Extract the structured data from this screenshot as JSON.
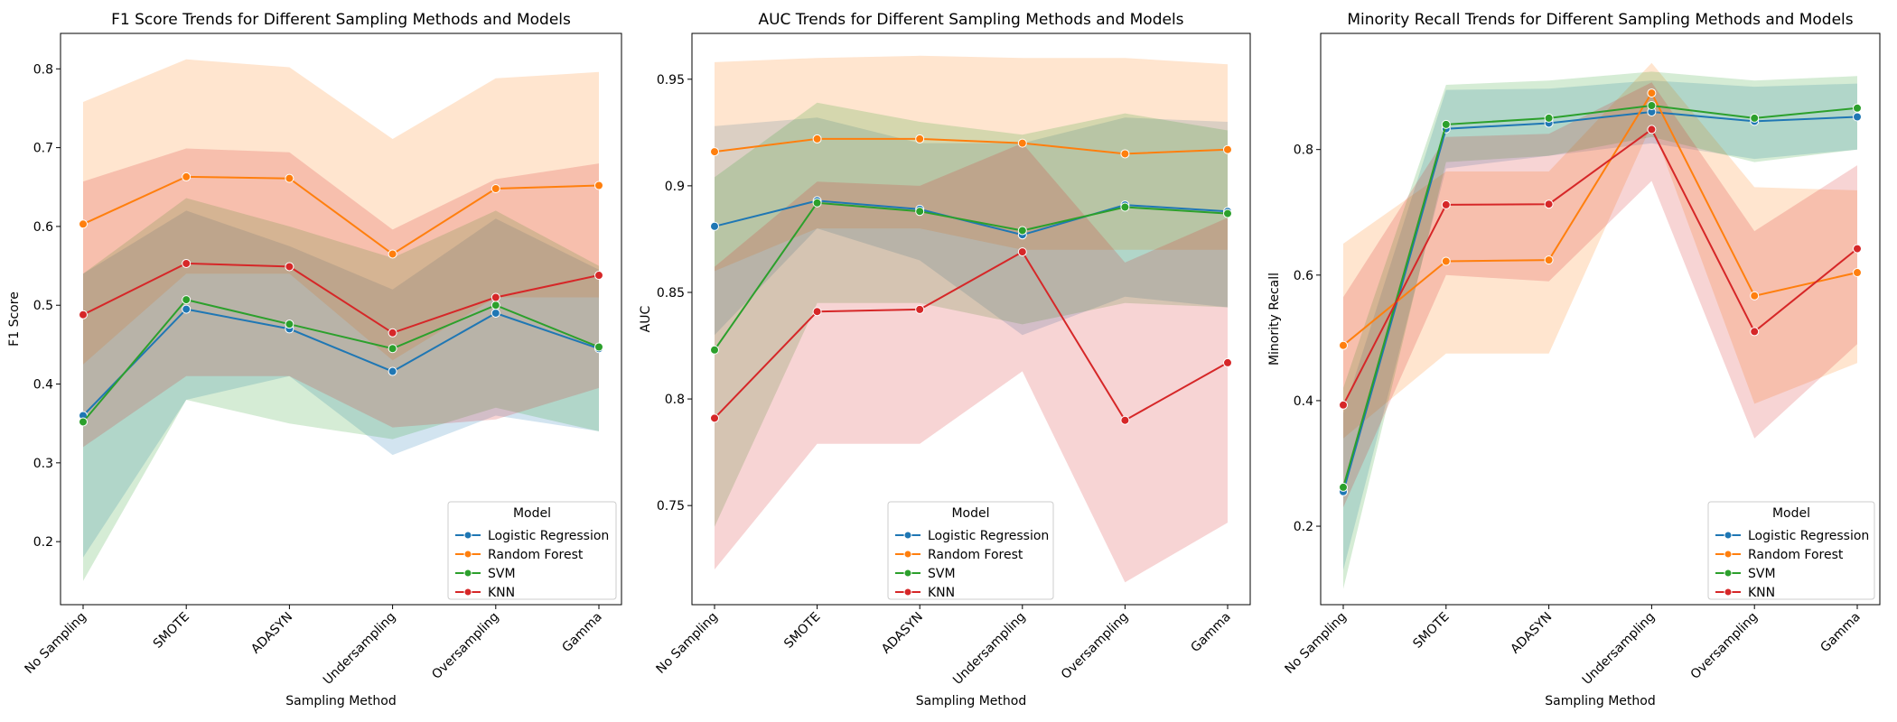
{
  "chart_data": [
    {
      "type": "line",
      "title": "F1 Score Trends for Different Sampling Methods and Models",
      "xlabel": "Sampling Method",
      "ylabel": "F1 Score",
      "ylim": [
        0.12,
        0.845
      ],
      "yticks": [
        0.2,
        0.3,
        0.4,
        0.5,
        0.6,
        0.7,
        0.8
      ],
      "categories": [
        "No Sampling",
        "SMOTE",
        "ADASYN",
        "Undersampling",
        "Oversampling",
        "Gamma"
      ],
      "legend": {
        "title": "Model",
        "position": "lower-right"
      },
      "series": [
        {
          "name": "Logistic Regression",
          "color": "#1f77b4",
          "values": [
            0.36,
            0.495,
            0.47,
            0.416,
            0.49,
            0.445
          ],
          "lower": [
            0.18,
            0.38,
            0.41,
            0.31,
            0.36,
            0.34
          ],
          "upper": [
            0.54,
            0.62,
            0.575,
            0.52,
            0.61,
            0.545
          ]
        },
        {
          "name": "Random Forest",
          "color": "#ff7f0e",
          "values": [
            0.603,
            0.663,
            0.661,
            0.565,
            0.648,
            0.652
          ],
          "lower": [
            0.425,
            0.54,
            0.54,
            0.43,
            0.51,
            0.51
          ],
          "upper": [
            0.758,
            0.812,
            0.802,
            0.711,
            0.788,
            0.796
          ]
        },
        {
          "name": "SVM",
          "color": "#2ca02c",
          "values": [
            0.352,
            0.507,
            0.476,
            0.445,
            0.5,
            0.447
          ],
          "lower": [
            0.15,
            0.38,
            0.35,
            0.33,
            0.37,
            0.34
          ],
          "upper": [
            0.54,
            0.636,
            0.6,
            0.56,
            0.62,
            0.55
          ]
        },
        {
          "name": "KNN",
          "color": "#d62728",
          "values": [
            0.488,
            0.553,
            0.549,
            0.465,
            0.51,
            0.538
          ],
          "lower": [
            0.32,
            0.41,
            0.41,
            0.345,
            0.355,
            0.395
          ],
          "upper": [
            0.657,
            0.699,
            0.694,
            0.596,
            0.66,
            0.68
          ]
        }
      ]
    },
    {
      "type": "line",
      "title": "AUC Trends for Different Sampling Methods and Models",
      "xlabel": "Sampling Method",
      "ylabel": "AUC",
      "ylim": [
        0.7035,
        0.9715
      ],
      "yticks": [
        0.75,
        0.8,
        0.85,
        0.9,
        0.95
      ],
      "categories": [
        "No Sampling",
        "SMOTE",
        "ADASYN",
        "Undersampling",
        "Oversampling",
        "Gamma"
      ],
      "legend": {
        "title": "Model",
        "position": "lower-center"
      },
      "series": [
        {
          "name": "Logistic Regression",
          "color": "#1f77b4",
          "values": [
            0.881,
            0.893,
            0.889,
            0.877,
            0.891,
            0.888
          ],
          "lower": [
            0.83,
            0.88,
            0.865,
            0.83,
            0.848,
            0.843
          ],
          "upper": [
            0.928,
            0.932,
            0.92,
            0.92,
            0.932,
            0.93
          ]
        },
        {
          "name": "Random Forest",
          "color": "#ff7f0e",
          "values": [
            0.916,
            0.922,
            0.922,
            0.92,
            0.915,
            0.917
          ],
          "lower": [
            0.86,
            0.88,
            0.88,
            0.87,
            0.87,
            0.87
          ],
          "upper": [
            0.958,
            0.96,
            0.961,
            0.96,
            0.96,
            0.957
          ]
        },
        {
          "name": "SVM",
          "color": "#2ca02c",
          "values": [
            0.823,
            0.892,
            0.888,
            0.879,
            0.89,
            0.887
          ],
          "lower": [
            0.74,
            0.845,
            0.845,
            0.835,
            0.845,
            0.843
          ],
          "upper": [
            0.904,
            0.939,
            0.93,
            0.924,
            0.934,
            0.926
          ]
        },
        {
          "name": "KNN",
          "color": "#d62728",
          "values": [
            0.791,
            0.841,
            0.842,
            0.869,
            0.79,
            0.817
          ],
          "lower": [
            0.72,
            0.779,
            0.779,
            0.813,
            0.714,
            0.742
          ],
          "upper": [
            0.862,
            0.902,
            0.9,
            0.92,
            0.864,
            0.885
          ]
        }
      ]
    },
    {
      "type": "line",
      "title": "Minority Recall Trends for Different Sampling Methods and Models",
      "xlabel": "Sampling Method",
      "ylabel": "Minority Recall",
      "ylim": [
        0.075,
        0.985
      ],
      "yticks": [
        0.2,
        0.4,
        0.6,
        0.8
      ],
      "categories": [
        "No Sampling",
        "SMOTE",
        "ADASYN",
        "Undersampling",
        "Oversampling",
        "Gamma"
      ],
      "legend": {
        "title": "Model",
        "position": "lower-right"
      },
      "series": [
        {
          "name": "Logistic Regression",
          "color": "#1f77b4",
          "values": [
            0.255,
            0.833,
            0.842,
            0.86,
            0.845,
            0.852
          ],
          "lower": [
            0.13,
            0.77,
            0.79,
            0.81,
            0.785,
            0.8
          ],
          "upper": [
            0.38,
            0.895,
            0.897,
            0.91,
            0.9,
            0.905
          ]
        },
        {
          "name": "Random Forest",
          "color": "#ff7f0e",
          "values": [
            0.488,
            0.622,
            0.624,
            0.89,
            0.567,
            0.604
          ],
          "lower": [
            0.34,
            0.475,
            0.475,
            0.84,
            0.395,
            0.46
          ],
          "upper": [
            0.65,
            0.765,
            0.765,
            0.938,
            0.74,
            0.735
          ]
        },
        {
          "name": "SVM",
          "color": "#2ca02c",
          "values": [
            0.262,
            0.84,
            0.85,
            0.87,
            0.85,
            0.866
          ],
          "lower": [
            0.1,
            0.78,
            0.79,
            0.82,
            0.78,
            0.8
          ],
          "upper": [
            0.42,
            0.903,
            0.91,
            0.924,
            0.91,
            0.917
          ]
        },
        {
          "name": "KNN",
          "color": "#d62728",
          "values": [
            0.393,
            0.712,
            0.713,
            0.832,
            0.51,
            0.642
          ],
          "lower": [
            0.23,
            0.6,
            0.59,
            0.75,
            0.34,
            0.49
          ],
          "upper": [
            0.565,
            0.82,
            0.825,
            0.907,
            0.67,
            0.775
          ]
        }
      ]
    }
  ]
}
